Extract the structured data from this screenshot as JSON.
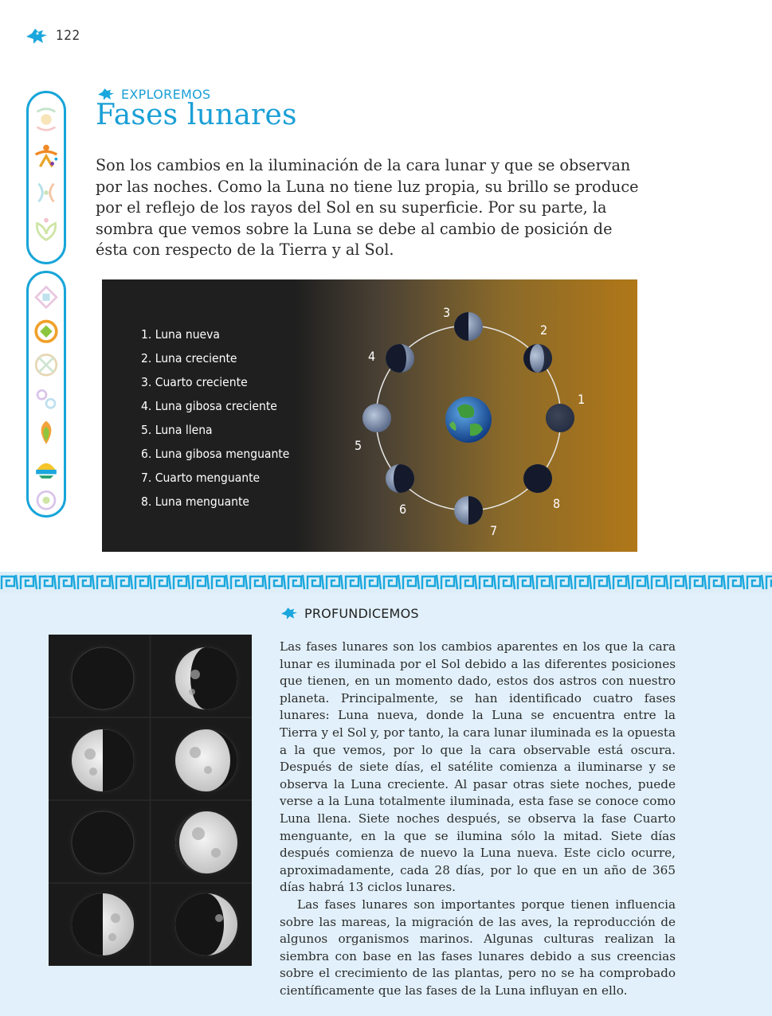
{
  "page": {
    "number": "122"
  },
  "explore": {
    "label": "EXPLOREMOS",
    "title": "Fases lunares",
    "intro": "Son los cambios en la iluminación de la cara lunar y que se observan por las noches. Como la Luna no tiene luz propia, su brillo se produce por el reflejo de los rayos del Sol en su superficie. Por su parte, la sombra que vemos sobre la Luna se debe al cambio de posición de ésta con respecto de la Tierra y al Sol."
  },
  "diagram": {
    "phases": [
      "1. Luna nueva",
      "2. Luna creciente",
      "3. Cuarto creciente",
      "4. Luna gibosa creciente",
      "5. Luna llena",
      "6. Luna gibosa menguante",
      "7. Cuarto menguante",
      "8. Luna menguante"
    ],
    "orbit_numbers": [
      "1",
      "2",
      "3",
      "4",
      "5",
      "6",
      "7",
      "8"
    ]
  },
  "deepen": {
    "label": "PROFUNDICEMOS",
    "paragraph1": "Las fases lunares son los cambios aparentes en los que la cara lunar es iluminada por el Sol debido a las diferentes posiciones que tienen, en un momento dado, estos dos astros con nuestro planeta. Principalmente, se han identificado cuatro fases lunares: Luna nueva, donde la Luna se encuentra entre la Tierra y el Sol y, por tanto, la cara lunar iluminada es la opuesta a la que vemos, por lo que la cara observable está oscura. Después de siete días, el satélite comienza a iluminarse y se observa la Luna creciente. Al pasar otras siete noches, puede verse a la Luna totalmente iluminada, esta fase se conoce como Luna llena. Siete noches después, se observa la fase Cuarto menguante, en la que se ilumina sólo la mitad. Siete días después comienza de nuevo la Luna nueva. Este ciclo ocurre, aproximadamente, cada 28 días, por lo que en un año de 365 días habrá 13 ciclos lunares.",
    "paragraph2": "Las fases lunares son importantes porque tienen influencia sobre las mareas, la migración de las aves, la reproducción de algunos organismos marinos. Algunas culturas realizan la siembra con base en las fases lunares debido a sus creencias sobre el crecimiento de las plantas, pero no se ha comprobado científicamente que las fases de la Luna influyan en ello."
  },
  "colors": {
    "accent": "#1a9fd6",
    "pill_border": "#17a5d9",
    "lower_bg": "#e1f0fa"
  },
  "icons": [
    "bird-glyph-icon",
    "sidebar-pictogram-icons"
  ]
}
